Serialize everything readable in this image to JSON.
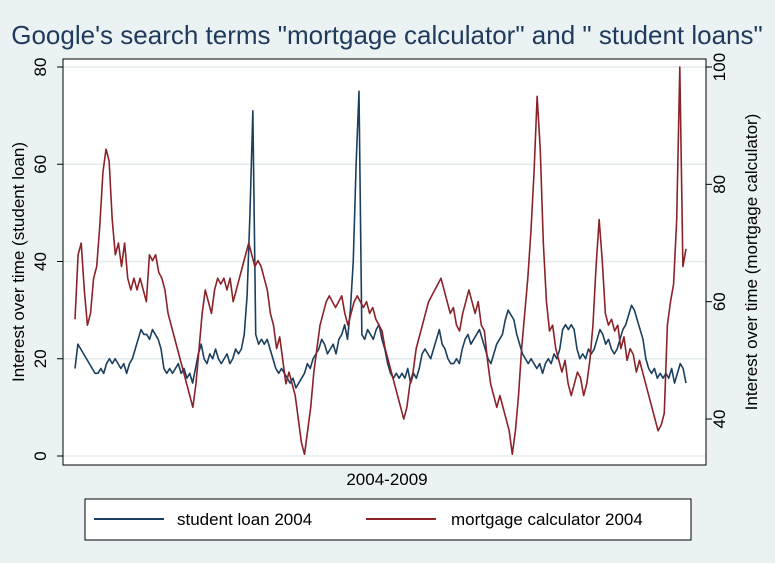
{
  "chart_data": {
    "type": "line",
    "title": "Google's search terms \"mortgage calculator\" and \" student loans\"",
    "xlabel": "2004-2009",
    "ylabel_left": "Interest over time (student loan)",
    "ylabel_right": "Interest over time (mortgage calculator)",
    "ylim_left": [
      0,
      80
    ],
    "yticks_left": [
      0,
      20,
      40,
      60,
      80
    ],
    "ylim_right": [
      33.7,
      100
    ],
    "yticks_right": [
      40,
      60,
      80,
      100
    ],
    "grid": true,
    "legend_position": "bottom",
    "series": [
      {
        "name": "student loan 2004",
        "axis": "left",
        "color": "#1b3f5e",
        "values": [
          18,
          23,
          22,
          21,
          20,
          19,
          18,
          17,
          17,
          18,
          17,
          19,
          20,
          19,
          20,
          19,
          18,
          19,
          17,
          19,
          20,
          22,
          24,
          26,
          25,
          25,
          24,
          26,
          25,
          24,
          22,
          18,
          17,
          18,
          17,
          18,
          19,
          17,
          18,
          16,
          17,
          15,
          18,
          21,
          23,
          20,
          19,
          21,
          20,
          22,
          20,
          19,
          20,
          21,
          19,
          20,
          22,
          21,
          22,
          25,
          33,
          50,
          71,
          25,
          23,
          24,
          23,
          24,
          22,
          20,
          18,
          17,
          18,
          17,
          16,
          15,
          16,
          14,
          15,
          16,
          17,
          19,
          18,
          20,
          21,
          22,
          24,
          23,
          21,
          22,
          23,
          21,
          24,
          25,
          27,
          24,
          30,
          40,
          60,
          75,
          25,
          24,
          26,
          25,
          24,
          26,
          27,
          24,
          22,
          19,
          17,
          16,
          17,
          16,
          17,
          16,
          18,
          15,
          17,
          16,
          18,
          21,
          22,
          21,
          20,
          22,
          24,
          26,
          23,
          22,
          20,
          19,
          19,
          20,
          19,
          22,
          24,
          25,
          23,
          24,
          25,
          26,
          24,
          22,
          20,
          19,
          21,
          23,
          24,
          25,
          28,
          30,
          29,
          28,
          25,
          23,
          21,
          20,
          19,
          20,
          19,
          18,
          19,
          17,
          19,
          20,
          19,
          21,
          20,
          22,
          26,
          27,
          26,
          27,
          26,
          22,
          20,
          21,
          20,
          22,
          21,
          22,
          24,
          26,
          25,
          23,
          24,
          22,
          21,
          22,
          24,
          26,
          27,
          29,
          31,
          30,
          28,
          26,
          24,
          20,
          18,
          17,
          18,
          16,
          17,
          16,
          17,
          16,
          18,
          15,
          17,
          19,
          18,
          15
        ]
      },
      {
        "name": "mortgage calculator 2004",
        "axis": "right",
        "color": "#8b2228",
        "values": [
          57,
          68,
          70,
          62,
          56,
          58,
          64,
          66,
          73,
          82,
          86,
          84,
          74,
          68,
          70,
          66,
          70,
          64,
          62,
          64,
          62,
          64,
          62,
          60,
          68,
          67,
          68,
          65,
          64,
          62,
          58,
          56,
          54,
          52,
          50,
          48,
          46,
          44,
          42,
          46,
          52,
          58,
          62,
          60,
          58,
          62,
          64,
          63,
          64,
          62,
          64,
          60,
          62,
          64,
          66,
          68,
          70,
          68,
          66,
          67,
          66,
          64,
          62,
          58,
          56,
          52,
          54,
          50,
          46,
          48,
          46,
          44,
          40,
          36,
          34,
          38,
          42,
          48,
          52,
          56,
          58,
          60,
          61,
          60,
          59,
          60,
          61,
          58,
          56,
          58,
          60,
          61,
          60,
          59,
          60,
          58,
          59,
          57,
          56,
          55,
          52,
          50,
          48,
          46,
          44,
          42,
          40,
          42,
          46,
          48,
          52,
          54,
          56,
          58,
          60,
          61,
          62,
          63,
          64,
          62,
          60,
          58,
          59,
          56,
          55,
          58,
          60,
          62,
          60,
          58,
          60,
          56,
          55,
          50,
          46,
          44,
          42,
          44,
          42,
          40,
          38,
          34,
          38,
          44,
          52,
          58,
          64,
          72,
          82,
          95,
          86,
          70,
          60,
          55,
          56,
          52,
          50,
          48,
          50,
          46,
          44,
          46,
          48,
          47,
          44,
          46,
          50,
          56,
          66,
          74,
          67,
          58,
          56,
          57,
          55,
          56,
          52,
          54,
          50,
          52,
          51,
          48,
          50,
          48,
          46,
          44,
          42,
          40,
          38,
          39,
          41,
          56,
          60,
          63,
          74,
          100,
          66,
          69
        ]
      }
    ]
  },
  "legend": {
    "items": [
      {
        "label": "student loan 2004",
        "color": "#1b3f5e"
      },
      {
        "label": "mortgage calculator 2004",
        "color": "#8b2228"
      }
    ]
  }
}
